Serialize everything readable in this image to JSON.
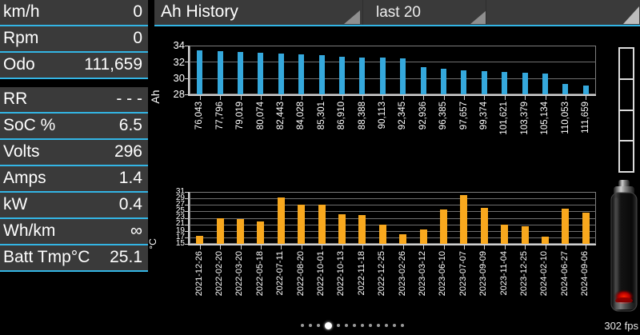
{
  "header": {
    "title": "Ah History",
    "range_selector": "last 20"
  },
  "left_panel": {
    "rows": [
      {
        "label": "km/h",
        "value": "0"
      },
      {
        "label": "Rpm",
        "value": "0"
      },
      {
        "label": "Odo",
        "value": "111,659"
      },
      {
        "label": "RR",
        "value": "- - -"
      },
      {
        "label": "SoC %",
        "value": "6.5"
      },
      {
        "label": "Volts",
        "value": "296"
      },
      {
        "label": "Amps",
        "value": "1.4"
      },
      {
        "label": "kW",
        "value": "0.4"
      },
      {
        "label": "Wh/km",
        "value": "∞"
      },
      {
        "label": "Batt Tmp°C",
        "value": "25.1"
      }
    ]
  },
  "status": {
    "fps": "302 fps"
  },
  "pager": {
    "count": 13,
    "active_index": 3
  },
  "colors": {
    "accent": "#33b5e5",
    "panel_bg": "#3a3a3a",
    "bar_blue": "#35a8dc",
    "bar_orange": "#f8a81e",
    "background": "#000000"
  },
  "chart_data": [
    {
      "type": "bar",
      "title": "Ah History",
      "ylabel": "Ah",
      "ylim": [
        28,
        34
      ],
      "ytick_step": 2,
      "grid": true,
      "legend": "none",
      "bar_color": "#35a8dc",
      "categories": [
        "76,043",
        "77,796",
        "79,019",
        "80,074",
        "82,443",
        "84,028",
        "85,301",
        "86,910",
        "88,388",
        "90,113",
        "92,345",
        "92,936",
        "96,385",
        "97,657",
        "99,374",
        "101,621",
        "103,379",
        "105,134",
        "110,053",
        "111,659"
      ],
      "values": [
        33.4,
        33.3,
        33.25,
        33.15,
        33.0,
        32.9,
        32.8,
        32.65,
        32.55,
        32.5,
        32.4,
        31.3,
        31.1,
        31.0,
        30.9,
        30.8,
        30.7,
        30.55,
        29.25,
        29.1
      ]
    },
    {
      "type": "bar",
      "title": "",
      "ylabel": "°C",
      "ylim": [
        15,
        31
      ],
      "ytick_step": 2,
      "grid": true,
      "legend": "none",
      "bar_color": "#f8a81e",
      "categories": [
        "2021-12-26",
        "2022-02-20",
        "2022-03-20",
        "2022-05-18",
        "2022-07-11",
        "2022-08-20",
        "2022-10-01",
        "2022-10-13",
        "2022-11-18",
        "2022-12-25",
        "2023-02-26",
        "2023-03-12",
        "2023-06-10",
        "2023-07-07",
        "2023-09-09",
        "2023-11-04",
        "2023-12-25",
        "2024-02-10",
        "2024-06-27",
        "2024-09-06"
      ],
      "values": [
        17.5,
        23.0,
        22.6,
        22.0,
        29.4,
        27.0,
        27.0,
        24.0,
        23.8,
        21.0,
        18.0,
        19.5,
        25.5,
        29.9,
        26.0,
        20.8,
        20.3,
        17.1,
        25.8,
        24.7
      ]
    }
  ]
}
